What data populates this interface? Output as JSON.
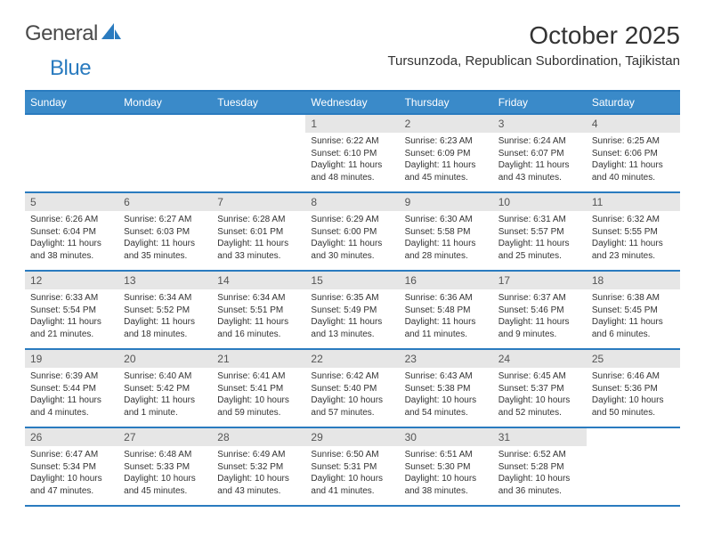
{
  "brand": {
    "name1": "General",
    "name2": "Blue"
  },
  "title": "October 2025",
  "location": "Tursunzoda, Republican Subordination, Tajikistan",
  "header_bg": "#3a8ac9",
  "border_color": "#2a7bbf",
  "daynum_bg": "#e6e6e6",
  "dayNames": [
    "Sunday",
    "Monday",
    "Tuesday",
    "Wednesday",
    "Thursday",
    "Friday",
    "Saturday"
  ],
  "weeks": [
    [
      {
        "n": "",
        "sr": "",
        "ss": "",
        "dl": ""
      },
      {
        "n": "",
        "sr": "",
        "ss": "",
        "dl": ""
      },
      {
        "n": "",
        "sr": "",
        "ss": "",
        "dl": ""
      },
      {
        "n": "1",
        "sr": "Sunrise: 6:22 AM",
        "ss": "Sunset: 6:10 PM",
        "dl": "Daylight: 11 hours and 48 minutes."
      },
      {
        "n": "2",
        "sr": "Sunrise: 6:23 AM",
        "ss": "Sunset: 6:09 PM",
        "dl": "Daylight: 11 hours and 45 minutes."
      },
      {
        "n": "3",
        "sr": "Sunrise: 6:24 AM",
        "ss": "Sunset: 6:07 PM",
        "dl": "Daylight: 11 hours and 43 minutes."
      },
      {
        "n": "4",
        "sr": "Sunrise: 6:25 AM",
        "ss": "Sunset: 6:06 PM",
        "dl": "Daylight: 11 hours and 40 minutes."
      }
    ],
    [
      {
        "n": "5",
        "sr": "Sunrise: 6:26 AM",
        "ss": "Sunset: 6:04 PM",
        "dl": "Daylight: 11 hours and 38 minutes."
      },
      {
        "n": "6",
        "sr": "Sunrise: 6:27 AM",
        "ss": "Sunset: 6:03 PM",
        "dl": "Daylight: 11 hours and 35 minutes."
      },
      {
        "n": "7",
        "sr": "Sunrise: 6:28 AM",
        "ss": "Sunset: 6:01 PM",
        "dl": "Daylight: 11 hours and 33 minutes."
      },
      {
        "n": "8",
        "sr": "Sunrise: 6:29 AM",
        "ss": "Sunset: 6:00 PM",
        "dl": "Daylight: 11 hours and 30 minutes."
      },
      {
        "n": "9",
        "sr": "Sunrise: 6:30 AM",
        "ss": "Sunset: 5:58 PM",
        "dl": "Daylight: 11 hours and 28 minutes."
      },
      {
        "n": "10",
        "sr": "Sunrise: 6:31 AM",
        "ss": "Sunset: 5:57 PM",
        "dl": "Daylight: 11 hours and 25 minutes."
      },
      {
        "n": "11",
        "sr": "Sunrise: 6:32 AM",
        "ss": "Sunset: 5:55 PM",
        "dl": "Daylight: 11 hours and 23 minutes."
      }
    ],
    [
      {
        "n": "12",
        "sr": "Sunrise: 6:33 AM",
        "ss": "Sunset: 5:54 PM",
        "dl": "Daylight: 11 hours and 21 minutes."
      },
      {
        "n": "13",
        "sr": "Sunrise: 6:34 AM",
        "ss": "Sunset: 5:52 PM",
        "dl": "Daylight: 11 hours and 18 minutes."
      },
      {
        "n": "14",
        "sr": "Sunrise: 6:34 AM",
        "ss": "Sunset: 5:51 PM",
        "dl": "Daylight: 11 hours and 16 minutes."
      },
      {
        "n": "15",
        "sr": "Sunrise: 6:35 AM",
        "ss": "Sunset: 5:49 PM",
        "dl": "Daylight: 11 hours and 13 minutes."
      },
      {
        "n": "16",
        "sr": "Sunrise: 6:36 AM",
        "ss": "Sunset: 5:48 PM",
        "dl": "Daylight: 11 hours and 11 minutes."
      },
      {
        "n": "17",
        "sr": "Sunrise: 6:37 AM",
        "ss": "Sunset: 5:46 PM",
        "dl": "Daylight: 11 hours and 9 minutes."
      },
      {
        "n": "18",
        "sr": "Sunrise: 6:38 AM",
        "ss": "Sunset: 5:45 PM",
        "dl": "Daylight: 11 hours and 6 minutes."
      }
    ],
    [
      {
        "n": "19",
        "sr": "Sunrise: 6:39 AM",
        "ss": "Sunset: 5:44 PM",
        "dl": "Daylight: 11 hours and 4 minutes."
      },
      {
        "n": "20",
        "sr": "Sunrise: 6:40 AM",
        "ss": "Sunset: 5:42 PM",
        "dl": "Daylight: 11 hours and 1 minute."
      },
      {
        "n": "21",
        "sr": "Sunrise: 6:41 AM",
        "ss": "Sunset: 5:41 PM",
        "dl": "Daylight: 10 hours and 59 minutes."
      },
      {
        "n": "22",
        "sr": "Sunrise: 6:42 AM",
        "ss": "Sunset: 5:40 PM",
        "dl": "Daylight: 10 hours and 57 minutes."
      },
      {
        "n": "23",
        "sr": "Sunrise: 6:43 AM",
        "ss": "Sunset: 5:38 PM",
        "dl": "Daylight: 10 hours and 54 minutes."
      },
      {
        "n": "24",
        "sr": "Sunrise: 6:45 AM",
        "ss": "Sunset: 5:37 PM",
        "dl": "Daylight: 10 hours and 52 minutes."
      },
      {
        "n": "25",
        "sr": "Sunrise: 6:46 AM",
        "ss": "Sunset: 5:36 PM",
        "dl": "Daylight: 10 hours and 50 minutes."
      }
    ],
    [
      {
        "n": "26",
        "sr": "Sunrise: 6:47 AM",
        "ss": "Sunset: 5:34 PM",
        "dl": "Daylight: 10 hours and 47 minutes."
      },
      {
        "n": "27",
        "sr": "Sunrise: 6:48 AM",
        "ss": "Sunset: 5:33 PM",
        "dl": "Daylight: 10 hours and 45 minutes."
      },
      {
        "n": "28",
        "sr": "Sunrise: 6:49 AM",
        "ss": "Sunset: 5:32 PM",
        "dl": "Daylight: 10 hours and 43 minutes."
      },
      {
        "n": "29",
        "sr": "Sunrise: 6:50 AM",
        "ss": "Sunset: 5:31 PM",
        "dl": "Daylight: 10 hours and 41 minutes."
      },
      {
        "n": "30",
        "sr": "Sunrise: 6:51 AM",
        "ss": "Sunset: 5:30 PM",
        "dl": "Daylight: 10 hours and 38 minutes."
      },
      {
        "n": "31",
        "sr": "Sunrise: 6:52 AM",
        "ss": "Sunset: 5:28 PM",
        "dl": "Daylight: 10 hours and 36 minutes."
      },
      {
        "n": "",
        "sr": "",
        "ss": "",
        "dl": ""
      }
    ]
  ]
}
